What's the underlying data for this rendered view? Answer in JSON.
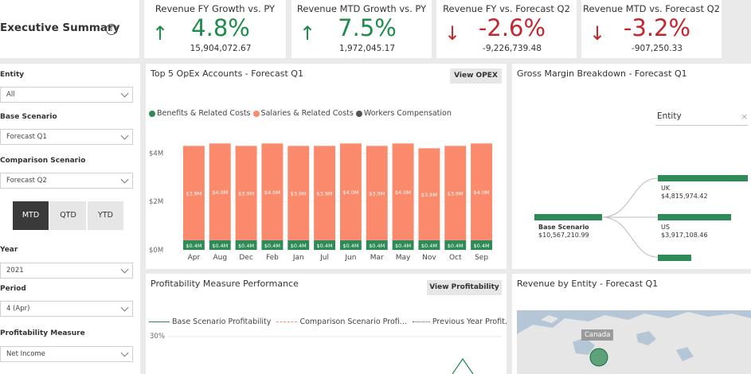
{
  "header": {
    "title": "Executive Summary"
  },
  "kpis": [
    {
      "title": "Revenue FY Growth vs. PY",
      "value": "4.8%",
      "sub": "15,904,072.67",
      "direction": "up"
    },
    {
      "title": "Revenue MTD Growth vs. PY",
      "value": "7.5%",
      "sub": "1,972,045.17",
      "direction": "up"
    },
    {
      "title": "Revenue FY vs. Forecast Q2",
      "value": "-2.6%",
      "sub": "-9,226,739.48",
      "direction": "down"
    },
    {
      "title": "Revenue MTD vs. Forecast Q2",
      "value": "-3.2%",
      "sub": "-907,250.33",
      "direction": "down"
    }
  ],
  "filters": {
    "entity": {
      "label": "Entity",
      "value": "All"
    },
    "base_scenario": {
      "label": "Base Scenario",
      "value": "Forecast Q1"
    },
    "comparison_scenario": {
      "label": "Comparison Scenario",
      "value": "Forecast Q2"
    },
    "period_type": {
      "options": [
        "MTD",
        "QTD",
        "YTD"
      ],
      "selected": "MTD"
    },
    "year": {
      "label": "Year",
      "value": "2021"
    },
    "period": {
      "label": "Period",
      "value": "4 (Apr)"
    },
    "profitability_measure": {
      "label": "Profitability Measure",
      "value": "Net Income"
    }
  },
  "opex": {
    "title": "Top 5 OpEx Accounts - Forecast Q1",
    "button": "View OPEX"
  },
  "chart_data": {
    "type": "bar",
    "stacked": true,
    "categories": [
      "Apr",
      "Aug",
      "Dec",
      "Feb",
      "Jan",
      "Jul",
      "Jun",
      "Mar",
      "May",
      "Nov",
      "Oct",
      "Sep"
    ],
    "series": [
      {
        "name": "Benefits & Related Costs",
        "color": "#2e8b57",
        "values": [
          0.4,
          0.4,
          0.4,
          0.4,
          0.4,
          0.4,
          0.4,
          0.4,
          0.4,
          0.4,
          0.4,
          0.4
        ],
        "labels": [
          "$0.4M",
          "$0.4M",
          "$0.4M",
          "$0.4M",
          "$0.4M",
          "$0.4M",
          "$0.4M",
          "$0.4M",
          "$0.4M",
          "$0.4M",
          "$0.4M",
          "$0.4M"
        ]
      },
      {
        "name": "Salaries & Related Costs",
        "color": "#fa8a6b",
        "values": [
          3.9,
          4.0,
          3.9,
          4.0,
          3.9,
          3.9,
          4.0,
          3.9,
          4.0,
          3.8,
          3.9,
          4.0
        ],
        "labels": [
          "$3.9M",
          "$4.0M",
          "$3.9M",
          "$4.0M",
          "$3.9M",
          "$3.9M",
          "$4.0M",
          "$3.9M",
          "$4.0M",
          "$3.8M",
          "$3.9M",
          "$4.0M"
        ]
      },
      {
        "name": "Workers Compensation",
        "color": "#555555",
        "values": [
          0,
          0,
          0,
          0,
          0,
          0,
          0,
          0,
          0,
          0,
          0,
          0
        ]
      }
    ],
    "y_ticks": [
      {
        "value": 0,
        "label": "$0M"
      },
      {
        "value": 2,
        "label": "$2M"
      },
      {
        "value": 4,
        "label": "$4M"
      }
    ],
    "ylim": [
      0,
      5.2
    ],
    "legend_position": "top-left",
    "grid": true
  },
  "gross_margin": {
    "title": "Gross Margin Breakdown - Forecast Q1",
    "filter_label": "Entity",
    "root": {
      "label": "Base Scenario",
      "value": "$10,567,210.99"
    },
    "children": [
      {
        "label": "UK",
        "value": "$4,815,974.42",
        "fill": 1.0
      },
      {
        "label": "US",
        "value": "$3,917,108.46",
        "fill": 0.81
      },
      {
        "label": "",
        "value": "",
        "fill": 0.37
      }
    ]
  },
  "profitability": {
    "title": "Profitability Measure Performance",
    "button": "View Profitability",
    "legend": [
      "Base Scenario Profitability",
      "Comparison Scenario Profi...",
      "Previous Year Profit..."
    ],
    "y_tick": "30%"
  },
  "revenue_entity": {
    "title": "Revenue by Entity - Forecast Q1",
    "map_label": "Canada"
  }
}
